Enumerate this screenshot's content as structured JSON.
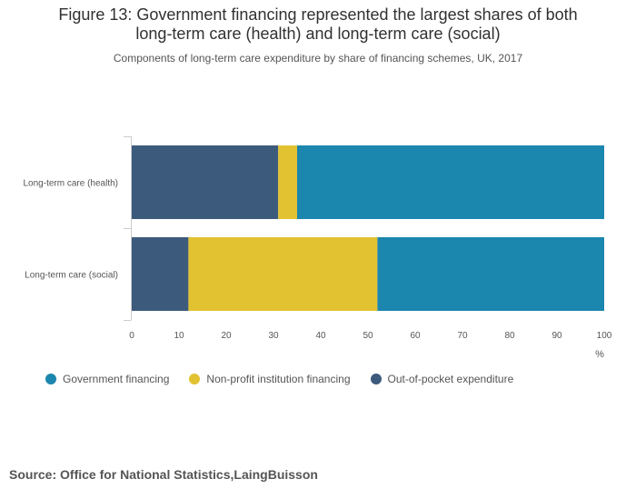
{
  "title_line1": "Figure 13: Government financing represented the largest shares of both",
  "title_line2": "long-term care (health) and long-term care (social)",
  "subtitle": "Components of long-term care expenditure by share of financing schemes, UK, 2017",
  "source": "Source: Office for National Statistics,LaingBuisson",
  "chart_data": {
    "type": "bar",
    "orientation": "horizontal",
    "stacked": true,
    "categories": [
      "Long-term care (health)",
      "Long-term care (social)"
    ],
    "series": [
      {
        "name": "Out-of-pocket expenditure",
        "color": "#3c5a7c",
        "values": [
          31,
          12
        ]
      },
      {
        "name": "Non-profit institution financing",
        "color": "#e3c232",
        "values": [
          4,
          40
        ]
      },
      {
        "name": "Government financing",
        "color": "#1b86ae",
        "values": [
          65,
          48
        ]
      }
    ],
    "legend_order": [
      "Government financing",
      "Non-profit institution financing",
      "Out-of-pocket expenditure"
    ],
    "xlim": [
      0,
      100
    ],
    "xticks": [
      0,
      10,
      20,
      30,
      40,
      50,
      60,
      70,
      80,
      90,
      100
    ],
    "xlabel": "%",
    "grid": false,
    "legend_position": "bottom-left"
  }
}
